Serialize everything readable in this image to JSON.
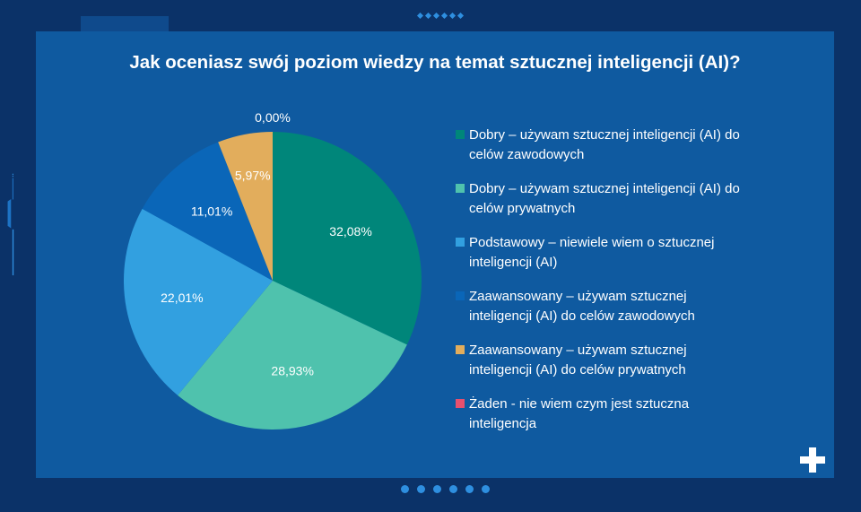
{
  "title": "Jak oceniasz swój poziom wiedzy na temat sztucznej inteligencji (AI)?",
  "colors": {
    "background": "#0b3268",
    "panel": "#0f5aa0",
    "accent": "#2e8fe0",
    "text": "#ffffff"
  },
  "chart_data": {
    "type": "pie",
    "title": "Jak oceniasz swój poziom wiedzy na temat sztucznej inteligencji (AI)?",
    "slices": [
      {
        "label": "Dobry – używam sztucznej inteligencji (AI) do celów zawodowych",
        "value": 32.08,
        "display": "32,08%",
        "color": "#00867a"
      },
      {
        "label": "Dobry – używam sztucznej inteligencji (AI) do celów prywatnych",
        "value": 28.93,
        "display": "28,93%",
        "color": "#4fc2ad"
      },
      {
        "label": "Podstawowy – niewiele wiem o sztucznej inteligencji (AI)",
        "value": 22.01,
        "display": "22,01%",
        "color": "#32a0e0"
      },
      {
        "label": "Zaawansowany – używam sztucznej inteligencji (AI) do celów zawodowych",
        "value": 11.01,
        "display": "11,01%",
        "color": "#0a66b8"
      },
      {
        "label": "Zaawansowany – używam sztucznej inteligencji (AI) do celów prywatnych",
        "value": 5.97,
        "display": "5,97%",
        "color": "#e2ad5c"
      },
      {
        "label": "Żaden - nie wiem czym jest sztuczna inteligencja",
        "value": 0.0,
        "display": "0,00%",
        "color": "#e8506e"
      }
    ],
    "legend_position": "right"
  }
}
